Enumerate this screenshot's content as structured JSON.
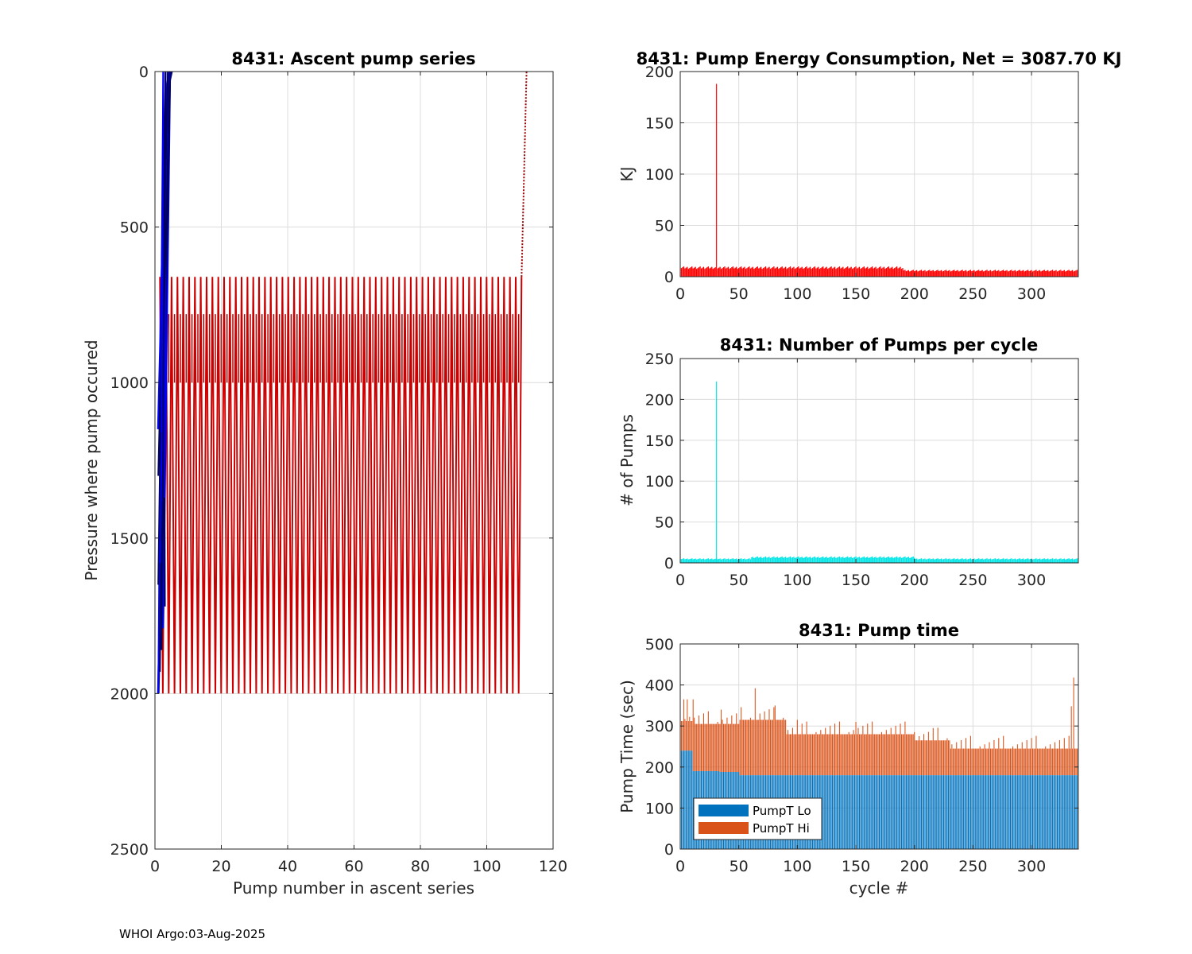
{
  "footer": "WHOI Argo:03-Aug-2025",
  "chart_data": [
    {
      "id": "ascent",
      "type": "line",
      "title": "8431: Ascent pump series",
      "xlabel": "Pump number in ascent series",
      "ylabel": "Pressure where pump occured",
      "xlim": [
        0,
        120
      ],
      "ylim": [
        0,
        2500
      ],
      "y_reversed": true,
      "grid": true,
      "xticks": [
        0,
        20,
        40,
        60,
        80,
        100,
        120
      ],
      "yticks": [
        0,
        500,
        1000,
        1500,
        2000,
        2500
      ],
      "series": [
        {
          "name": "sawtooth ascent",
          "color": "#cc0000",
          "teeth_start": 1.5,
          "teeth_end": 110.5,
          "tooth_count": 62,
          "top": 660,
          "bottom": 2000
        },
        {
          "name": "dotted descent",
          "color": "#990000",
          "x": [
            110.5,
            112
          ],
          "y": [
            660,
            0
          ]
        },
        {
          "name": "early profiles",
          "color": "#000080",
          "x": [
            1,
            2,
            2.5,
            3,
            3.5,
            4,
            5
          ],
          "y": [
            2000,
            1500,
            1100,
            700,
            300,
            50,
            0
          ]
        },
        {
          "name": "early profiles blue",
          "color": "#0000ff",
          "x": [
            1,
            1.6,
            2.2,
            2.8,
            3.3,
            4.2
          ],
          "y": [
            1150,
            900,
            600,
            300,
            100,
            0
          ]
        }
      ]
    },
    {
      "id": "energy",
      "type": "bar",
      "title": "8431: Pump Energy Consumption,  Net = 3087.70 KJ",
      "xlabel": "",
      "ylabel": "KJ",
      "xlim": [
        0,
        340
      ],
      "ylim": [
        0,
        200
      ],
      "grid": true,
      "color": "#ff0000",
      "xticks": [
        0,
        50,
        100,
        150,
        200,
        250,
        300
      ],
      "yticks": [
        0,
        50,
        100,
        150,
        200
      ],
      "spike": {
        "x": 31,
        "value": 188
      },
      "segments": [
        {
          "from": 1,
          "to": 30,
          "value": 9
        },
        {
          "from": 32,
          "to": 190,
          "value": 9
        },
        {
          "from": 191,
          "to": 339,
          "value": 6
        }
      ]
    },
    {
      "id": "pumps",
      "type": "bar",
      "title": "8431: Number of Pumps per cycle",
      "xlabel": "",
      "ylabel": "# of Pumps",
      "xlim": [
        0,
        340
      ],
      "ylim": [
        0,
        250
      ],
      "grid": true,
      "color": "#00e5e5",
      "xticks": [
        0,
        50,
        100,
        150,
        200,
        250,
        300
      ],
      "yticks": [
        0,
        50,
        100,
        150,
        200,
        250
      ],
      "spike": {
        "x": 31,
        "value": 222
      },
      "segments": [
        {
          "from": 1,
          "to": 60,
          "value": 5
        },
        {
          "from": 61,
          "to": 200,
          "value": 7
        },
        {
          "from": 201,
          "to": 339,
          "value": 5
        }
      ]
    },
    {
      "id": "pumptime",
      "type": "bar",
      "title": "8431: Pump time",
      "xlabel": "cycle #",
      "ylabel": "Pump Time (sec)",
      "xlim": [
        0,
        340
      ],
      "ylim": [
        0,
        500
      ],
      "grid": true,
      "stacked": true,
      "xticks": [
        0,
        50,
        100,
        150,
        200,
        250,
        300
      ],
      "yticks": [
        0,
        100,
        200,
        300,
        400,
        500
      ],
      "legend": {
        "position": "bottom-left",
        "entries": [
          "PumpT Lo",
          "PumpT Hi"
        ]
      },
      "series": [
        {
          "name": "PumpT Lo",
          "color": "#0072bd",
          "segments": [
            {
              "from": 1,
              "to": 10,
              "value": 240
            },
            {
              "from": 11,
              "to": 33,
              "value": 190
            },
            {
              "from": 34,
              "to": 50,
              "value": 188
            },
            {
              "from": 51,
              "to": 339,
              "value": 180
            }
          ]
        },
        {
          "name": "PumpT Hi",
          "color": "#d95319",
          "segments": [
            {
              "from": 1,
              "to": 10,
              "total": 312
            },
            {
              "from": 11,
              "to": 50,
              "total": 305
            },
            {
              "from": 51,
              "to": 90,
              "total": 315
            },
            {
              "from": 91,
              "to": 200,
              "total": 280
            },
            {
              "from": 201,
              "to": 230,
              "total": 265
            },
            {
              "from": 231,
              "to": 339,
              "total": 245
            }
          ],
          "peaks": [
            {
              "x": 3,
              "total": 365
            },
            {
              "x": 6,
              "total": 365
            },
            {
              "x": 11,
              "total": 365
            },
            {
              "x": 35,
              "total": 340
            },
            {
              "x": 64,
              "total": 392
            },
            {
              "x": 81,
              "total": 350
            },
            {
              "x": 100,
              "total": 315
            },
            {
              "x": 150,
              "total": 310
            },
            {
              "x": 216,
              "total": 295
            },
            {
              "x": 334,
              "total": 348
            },
            {
              "x": 336,
              "total": 418
            }
          ]
        }
      ]
    }
  ]
}
